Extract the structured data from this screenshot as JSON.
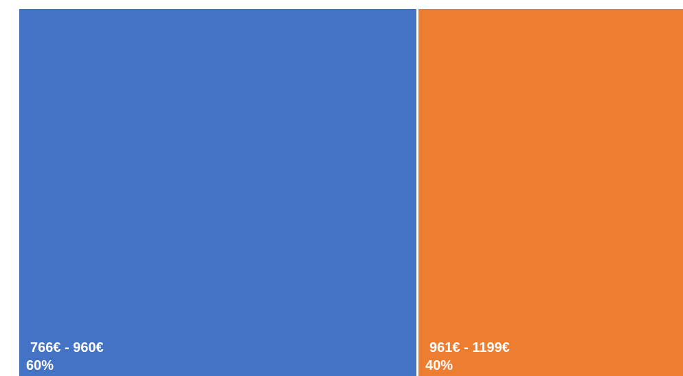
{
  "chart_data": {
    "type": "treemap",
    "title": "",
    "categories": [
      "766€ - 960€",
      "961€ - 1199€"
    ],
    "values": [
      60,
      40
    ],
    "value_labels": [
      "60%",
      "40%"
    ],
    "colors": [
      "#4472C4",
      "#ED7D31"
    ],
    "legend": "none",
    "grid": false
  }
}
